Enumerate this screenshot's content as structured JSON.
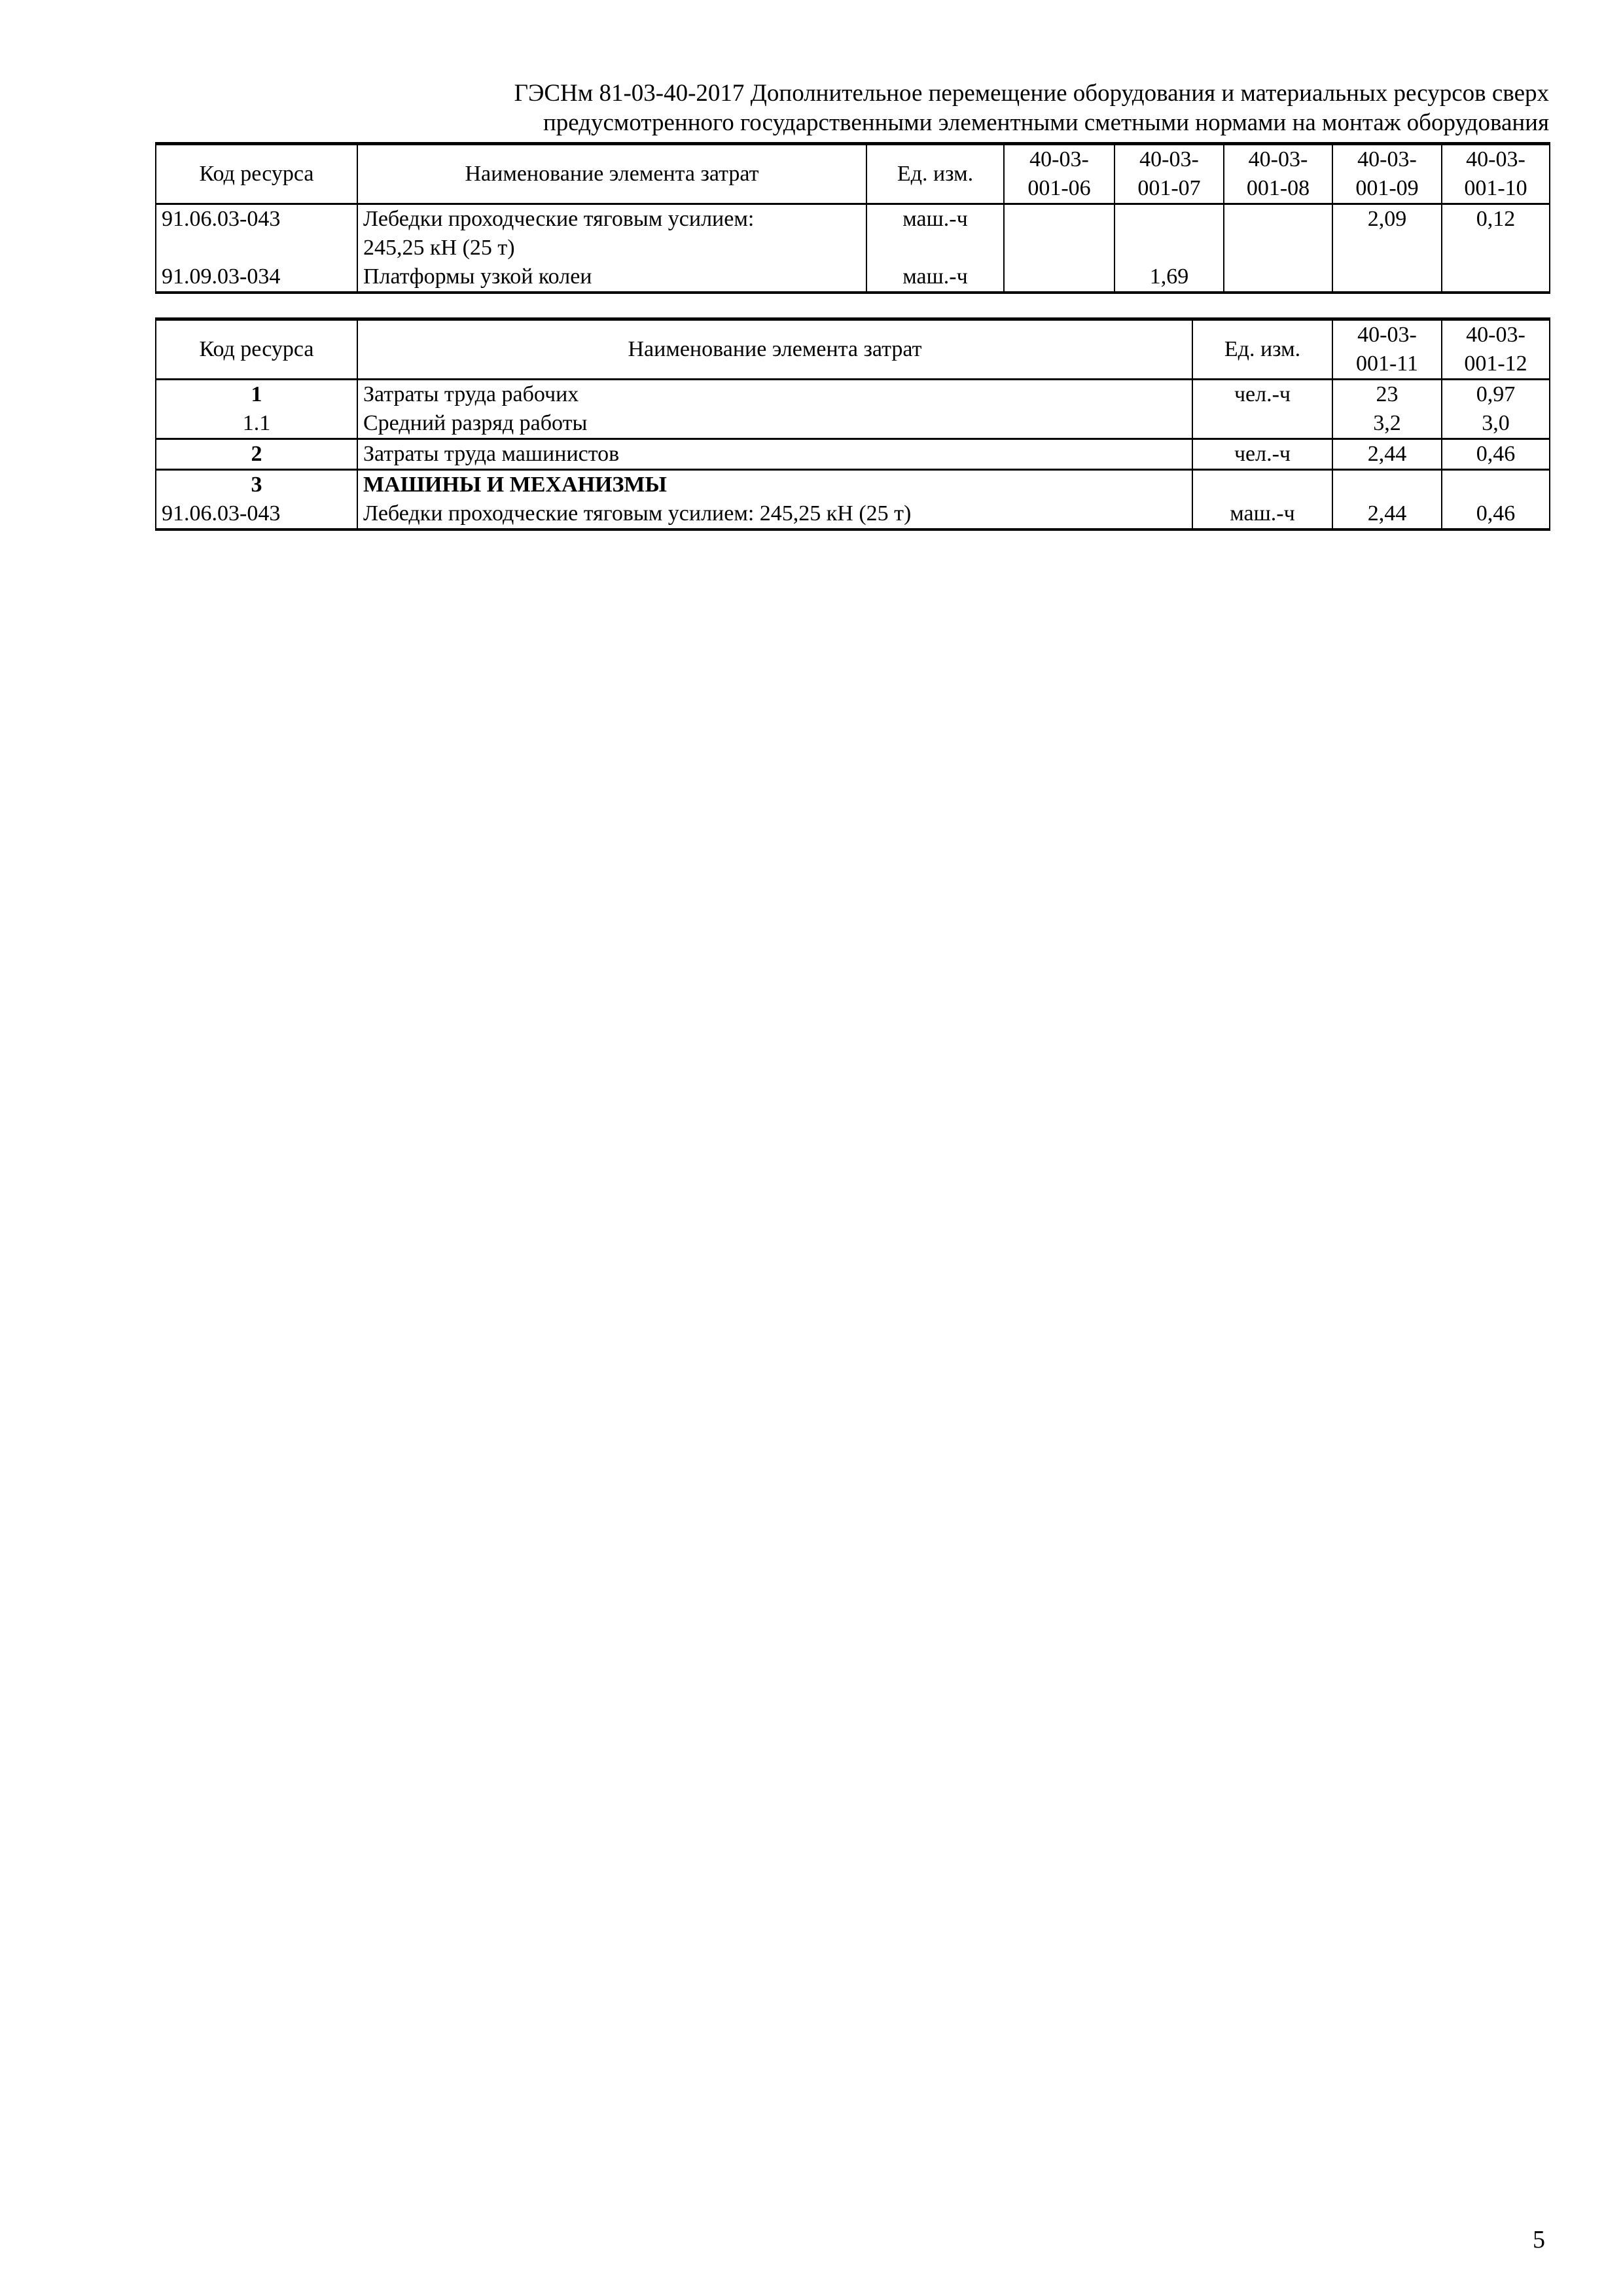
{
  "header": {
    "line1": "ГЭСНм 81-03-40-2017 Дополнительное перемещение оборудования и материальных ресурсов сверх",
    "line2": "предусмотренного государственными элементными сметными нормами на монтаж оборудования"
  },
  "table1": {
    "columns": [
      "Код ресурса",
      "Наименование элемента затрат",
      "Ед. изм.",
      "40-03-001-06",
      "40-03-001-07",
      "40-03-001-08",
      "40-03-001-09",
      "40-03-001-10"
    ],
    "col_top": [
      "40-03-",
      "40-03-",
      "40-03-",
      "40-03-",
      "40-03-"
    ],
    "col_bottom": [
      "001-06",
      "001-07",
      "001-08",
      "001-09",
      "001-10"
    ],
    "rows": [
      {
        "code": "91.06.03-043",
        "name1": "Лебедки проходческие тяговым усилием:",
        "name2": "245,25 кН (25 т)",
        "unit": "маш.-ч",
        "v": [
          "",
          "",
          "",
          "2,09",
          "0,12"
        ]
      },
      {
        "code": "91.09.03-034",
        "name1": "Платформы узкой колеи",
        "unit": "маш.-ч",
        "v": [
          "",
          "1,69",
          "",
          "",
          ""
        ]
      }
    ]
  },
  "table2": {
    "columns": [
      "Код ресурса",
      "Наименование элемента затрат",
      "Ед. изм.",
      "40-03-001-11",
      "40-03-001-12"
    ],
    "col_top": [
      "40-03-",
      "40-03-"
    ],
    "col_bottom": [
      "001-11",
      "001-12"
    ],
    "rows": [
      {
        "code": "1",
        "name": "Затраты труда рабочих",
        "unit": "чел.-ч",
        "v": [
          "23",
          "0,97"
        ]
      },
      {
        "code": "1.1",
        "name": "Средний разряд работы",
        "unit": "",
        "v": [
          "3,2",
          "3,0"
        ]
      },
      {
        "code": "2",
        "name": "Затраты труда машинистов",
        "unit": "чел.-ч",
        "v": [
          "2,44",
          "0,46"
        ]
      },
      {
        "code": "3",
        "name": "МАШИНЫ И МЕХАНИЗМЫ",
        "unit": "",
        "v": [
          "",
          ""
        ]
      },
      {
        "code": "91.06.03-043",
        "name": "Лебедки проходческие тяговым усилием: 245,25 кН (25 т)",
        "unit": "маш.-ч",
        "v": [
          "2,44",
          "0,46"
        ]
      }
    ]
  },
  "page_number": "5"
}
